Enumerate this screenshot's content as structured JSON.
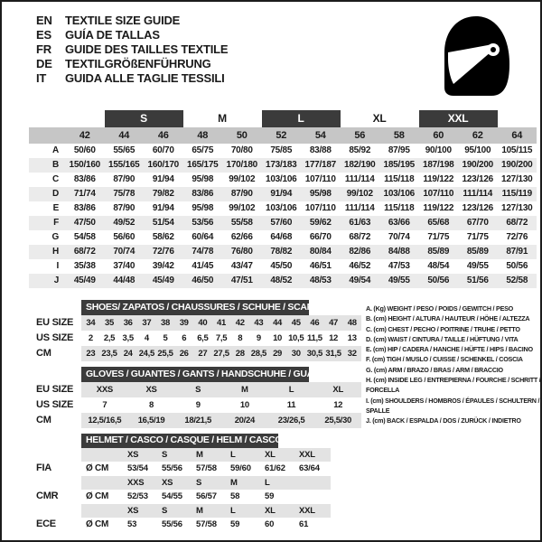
{
  "header": {
    "languages": [
      {
        "code": "EN",
        "text": "TEXTILE SIZE GUIDE"
      },
      {
        "code": "ES",
        "text": "GUÍA DE TALLAS"
      },
      {
        "code": "FR",
        "text": "GUIDE DES TAILLES TEXTILE"
      },
      {
        "code": "DE",
        "text": "TEXTILGRÖßENFÜHRUNG"
      },
      {
        "code": "IT",
        "text": "GUIDA ALLE TAGLIE TESSILI"
      }
    ],
    "icon": "full-face-helmet"
  },
  "textile_table": {
    "size_groups": [
      {
        "label": "S",
        "dark": true
      },
      {
        "label": "M",
        "dark": false
      },
      {
        "label": "L",
        "dark": true
      },
      {
        "label": "XL",
        "dark": false
      },
      {
        "label": "XXL",
        "dark": true
      }
    ],
    "columns": [
      "42",
      "44",
      "46",
      "48",
      "50",
      "52",
      "54",
      "56",
      "58",
      "60",
      "62",
      "64"
    ],
    "rows": [
      {
        "label": "A",
        "values": [
          "50/60",
          "55/65",
          "60/70",
          "65/75",
          "70/80",
          "75/85",
          "83/88",
          "85/92",
          "87/95",
          "90/100",
          "95/100",
          "105/115"
        ]
      },
      {
        "label": "B",
        "values": [
          "150/160",
          "155/165",
          "160/170",
          "165/175",
          "170/180",
          "173/183",
          "177/187",
          "182/190",
          "185/195",
          "187/198",
          "190/200",
          "190/200"
        ]
      },
      {
        "label": "C",
        "values": [
          "83/86",
          "87/90",
          "91/94",
          "95/98",
          "99/102",
          "103/106",
          "107/110",
          "111/114",
          "115/118",
          "119/122",
          "123/126",
          "127/130"
        ]
      },
      {
        "label": "D",
        "values": [
          "71/74",
          "75/78",
          "79/82",
          "83/86",
          "87/90",
          "91/94",
          "95/98",
          "99/102",
          "103/106",
          "107/110",
          "111/114",
          "115/119"
        ]
      },
      {
        "label": "E",
        "values": [
          "83/86",
          "87/90",
          "91/94",
          "95/98",
          "99/102",
          "103/106",
          "107/110",
          "111/114",
          "115/118",
          "119/122",
          "123/126",
          "127/130"
        ]
      },
      {
        "label": "F",
        "values": [
          "47/50",
          "49/52",
          "51/54",
          "53/56",
          "55/58",
          "57/60",
          "59/62",
          "61/63",
          "63/66",
          "65/68",
          "67/70",
          "68/72"
        ]
      },
      {
        "label": "G",
        "values": [
          "54/58",
          "56/60",
          "58/62",
          "60/64",
          "62/66",
          "64/68",
          "66/70",
          "68/72",
          "70/74",
          "71/75",
          "71/75",
          "72/76"
        ]
      },
      {
        "label": "H",
        "values": [
          "68/72",
          "70/74",
          "72/76",
          "74/78",
          "76/80",
          "78/82",
          "80/84",
          "82/86",
          "84/88",
          "85/89",
          "85/89",
          "87/91"
        ]
      },
      {
        "label": "I",
        "values": [
          "35/38",
          "37/40",
          "39/42",
          "41/45",
          "43/47",
          "45/50",
          "46/51",
          "46/52",
          "47/53",
          "48/54",
          "49/55",
          "50/56"
        ]
      },
      {
        "label": "J",
        "values": [
          "45/49",
          "44/48",
          "45/49",
          "46/50",
          "47/51",
          "48/52",
          "48/53",
          "49/54",
          "49/55",
          "50/56",
          "51/56",
          "52/58"
        ]
      }
    ]
  },
  "shoes_table": {
    "title": "SHOES/ ZAPATOS / CHAUSSURES / SCHUHE / SCARPE",
    "rows": [
      {
        "label": "EU SIZE",
        "values": [
          "34",
          "35",
          "36",
          "37",
          "38",
          "39",
          "40",
          "41",
          "42",
          "43",
          "44",
          "45",
          "46",
          "47",
          "48"
        ]
      },
      {
        "label": "US SIZE",
        "values": [
          "2",
          "2,5",
          "3,5",
          "4",
          "5",
          "6",
          "6,5",
          "7,5",
          "8",
          "9",
          "10",
          "10,5",
          "11,5",
          "12",
          "13"
        ]
      },
      {
        "label": "CM",
        "values": [
          "23",
          "23,5",
          "24",
          "24,5",
          "25,5",
          "26",
          "27",
          "27,5",
          "28",
          "28,5",
          "29",
          "30",
          "30,5",
          "31,5",
          "32"
        ]
      }
    ]
  },
  "gloves_table": {
    "title": "GLOVES / GUANTES / GANTS / HANDSCHUHE / GUANTI",
    "rows": [
      {
        "label": "EU SIZE",
        "values": [
          "XXS",
          "XS",
          "S",
          "M",
          "L",
          "XL"
        ]
      },
      {
        "label": "US SIZE",
        "values": [
          "7",
          "8",
          "9",
          "10",
          "11",
          "12"
        ]
      },
      {
        "label": "CM",
        "values": [
          "12,5/16,5",
          "16,5/19",
          "18/21,5",
          "20/24",
          "23/26,5",
          "25,5/30"
        ]
      }
    ]
  },
  "helmet_table": {
    "title": "HELMET / CASCO / CASQUE / HELM / CASCO",
    "sections": [
      {
        "label": "FIA",
        "unit": "Ø CM",
        "sizes": [
          "XS",
          "S",
          "M",
          "L",
          "XL",
          "XXL"
        ],
        "values": [
          "53/54",
          "55/56",
          "57/58",
          "59/60",
          "61/62",
          "63/64"
        ]
      },
      {
        "label": "CMR",
        "unit": "Ø CM",
        "sizes": [
          "XXS",
          "XS",
          "S",
          "M",
          "L"
        ],
        "values": [
          "52/53",
          "54/55",
          "56/57",
          "58",
          "59"
        ]
      },
      {
        "label": "ECE",
        "unit": "Ø CM",
        "sizes": [
          "XS",
          "S",
          "M",
          "L",
          "XL",
          "XXL"
        ],
        "values": [
          "53",
          "55/56",
          "57/58",
          "59",
          "60",
          "61"
        ]
      }
    ]
  },
  "legend": {
    "items": [
      "A. (Kg) WEIGHT / PESO / POIDS / GEWITCH / PESO",
      "B. (cm) HEIGHT / ALTURA / HAUTEUR / HÖHE / ALTEZZA",
      "C. (cm) CHEST / PECHO / POITRINE / TRUHE / PETTO",
      "D. (cm) WAIST / CINTURA / TAILLE / HÜFTUNG / VITA",
      "E. (cm) HIP / CADERA / HANCHE / HÜFTE / HIPS /  BACINO",
      "F.  (cm) TIGH / MUSLO / CUISSE / SCHENKEL / COSCIA",
      "G. (cm) ARM  / BRAZO / BRAS / ARM / BRACCIO",
      "H. (cm) INSIDE LEG / ENTREPIERNA / FOURCHE / SCHRITT / FORCELLA",
      "I.  (cm) SHOULDERS / HOMBROS / ÉPAULES / SCHULTERN / SPALLE",
      "J. (cm) BACK / ESPALDA / DOS / ZURÜCK / INDIETRO"
    ]
  },
  "colors": {
    "dark_bar": "#3b3b3b",
    "header_band": "#c6c6c6",
    "row_stripe": "#ebebeb",
    "lower_stripe": "#e3e3e3",
    "text": "#1a1a1a"
  }
}
